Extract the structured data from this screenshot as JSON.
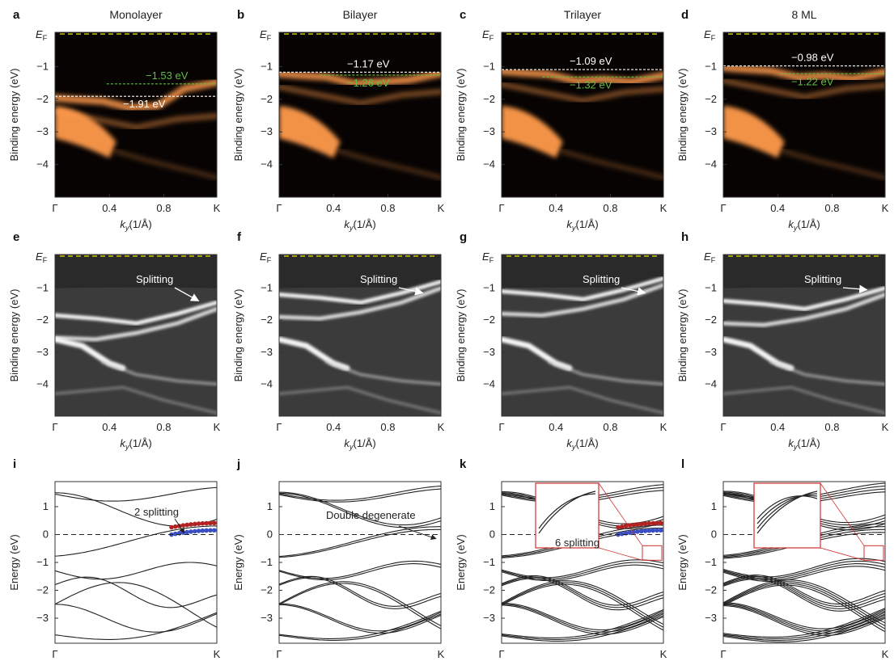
{
  "colors": {
    "arpes_hot": "#ff9a4c",
    "green_ref": "#5fbf3f",
    "yellow_ef": "#d8d800",
    "red_band": "#b22222",
    "blue_band": "#3a4fc4"
  },
  "chart_data": [
    {
      "id": "a",
      "type": "heatmap",
      "title": "Monolayer",
      "style": "arpes",
      "xlabel": "k_y(1/Å)",
      "ylabel": "Binding energy (eV)",
      "xticks": [
        "Γ",
        "0.4",
        "0.8",
        "K"
      ],
      "xtick_values": [
        0,
        0.4,
        0.8,
        1.19
      ],
      "yticks": [
        "−1",
        "−2",
        "−3",
        "−4"
      ],
      "ytick_values": [
        -1,
        -2,
        -3,
        -4
      ],
      "ylim": [
        -5,
        0.05
      ],
      "ef_label": "E_F",
      "refs": [
        {
          "label": "−1.53 eV",
          "value": -1.53,
          "color": "green",
          "x_start": 0.38
        },
        {
          "label": "−1.91 eV",
          "value": -1.91,
          "color": "white",
          "x_start": 0
        }
      ]
    },
    {
      "id": "b",
      "type": "heatmap",
      "title": "Bilayer",
      "style": "arpes",
      "xlabel": "k_y(1/Å)",
      "ylabel": "Binding energy (eV)",
      "xticks": [
        "Γ",
        "0.4",
        "0.8",
        "K"
      ],
      "xtick_values": [
        0,
        0.4,
        0.8,
        1.19
      ],
      "yticks": [
        "−1",
        "−2",
        "−3",
        "−4"
      ],
      "ytick_values": [
        -1,
        -2,
        -3,
        -4
      ],
      "ylim": [
        -5,
        0.05
      ],
      "ef_label": "E_F",
      "refs": [
        {
          "label": "−1.17 eV",
          "value": -1.17,
          "color": "white",
          "x_start": 0
        },
        {
          "label": "−1.26 eV",
          "value": -1.26,
          "color": "green",
          "x_start": 0.3
        }
      ]
    },
    {
      "id": "c",
      "type": "heatmap",
      "title": "Trilayer",
      "style": "arpes",
      "xlabel": "k_y(1/Å)",
      "ylabel": "Binding energy (eV)",
      "xticks": [
        "Γ",
        "0.4",
        "0.8",
        "K"
      ],
      "xtick_values": [
        0,
        0.4,
        0.8,
        1.19
      ],
      "yticks": [
        "−1",
        "−2",
        "−3",
        "−4"
      ],
      "ytick_values": [
        -1,
        -2,
        -3,
        -4
      ],
      "ylim": [
        -5,
        0.05
      ],
      "ef_label": "E_F",
      "refs": [
        {
          "label": "−1.09 eV",
          "value": -1.09,
          "color": "white",
          "x_start": 0
        },
        {
          "label": "−1.32 eV",
          "value": -1.32,
          "color": "green",
          "x_start": 0.3
        }
      ]
    },
    {
      "id": "d",
      "type": "heatmap",
      "title": "8 ML",
      "style": "arpes",
      "xlabel": "k_y(1/Å)",
      "ylabel": "Binding energy (eV)",
      "xticks": [
        "Γ",
        "0.4",
        "0.8",
        "K"
      ],
      "xtick_values": [
        0,
        0.4,
        0.8,
        1.19
      ],
      "yticks": [
        "−1",
        "−2",
        "−3",
        "−4"
      ],
      "ytick_values": [
        -1,
        -2,
        -3,
        -4
      ],
      "ylim": [
        -5,
        0.05
      ],
      "ef_label": "E_F",
      "refs": [
        {
          "label": "−0.98 eV",
          "value": -0.98,
          "color": "white",
          "x_start": 0
        },
        {
          "label": "−1.22 eV",
          "value": -1.22,
          "color": "green",
          "x_start": 0.42
        }
      ]
    },
    {
      "id": "e",
      "type": "heatmap",
      "title": "",
      "style": "curvature",
      "xlabel": "k_y(1/Å)",
      "ylabel": "Binding energy (eV)",
      "xticks": [
        "Γ",
        "0.4",
        "0.8",
        "K"
      ],
      "xtick_values": [
        0,
        0.4,
        0.8,
        1.19
      ],
      "yticks": [
        "−1",
        "−2",
        "−3",
        "−4"
      ],
      "ytick_values": [
        -1,
        -2,
        -3,
        -4
      ],
      "ylim": [
        -5,
        0.05
      ],
      "ef_label": "E_F",
      "annotation": "Splitting"
    },
    {
      "id": "f",
      "type": "heatmap",
      "title": "",
      "style": "curvature",
      "xlabel": "k_y(1/Å)",
      "ylabel": "Binding energy (eV)",
      "xticks": [
        "Γ",
        "0.4",
        "0.8",
        "K"
      ],
      "xtick_values": [
        0,
        0.4,
        0.8,
        1.19
      ],
      "yticks": [
        "−1",
        "−2",
        "−3",
        "−4"
      ],
      "ytick_values": [
        -1,
        -2,
        -3,
        -4
      ],
      "ylim": [
        -5,
        0.05
      ],
      "ef_label": "E_F",
      "annotation": "Splitting"
    },
    {
      "id": "g",
      "type": "heatmap",
      "title": "",
      "style": "curvature",
      "xlabel": "k_y(1/Å)",
      "ylabel": "Binding energy (eV)",
      "xticks": [
        "Γ",
        "0.4",
        "0.8",
        "K"
      ],
      "xtick_values": [
        0,
        0.4,
        0.8,
        1.19
      ],
      "yticks": [
        "−1",
        "−2",
        "−3",
        "−4"
      ],
      "ytick_values": [
        -1,
        -2,
        -3,
        -4
      ],
      "ylim": [
        -5,
        0.05
      ],
      "ef_label": "E_F",
      "annotation": "Splitting"
    },
    {
      "id": "h",
      "type": "heatmap",
      "title": "",
      "style": "curvature",
      "xlabel": "k_y(1/Å)",
      "ylabel": "Binding energy (eV)",
      "xticks": [
        "Γ",
        "0.4",
        "0.8",
        "K"
      ],
      "xtick_values": [
        0,
        0.4,
        0.8,
        1.19
      ],
      "yticks": [
        "−1",
        "−2",
        "−3",
        "−4"
      ],
      "ytick_values": [
        -1,
        -2,
        -3,
        -4
      ],
      "ylim": [
        -5,
        0.05
      ],
      "ef_label": "E_F",
      "annotation": "Splitting"
    },
    {
      "id": "i",
      "type": "line",
      "title": "",
      "xlabel": "",
      "ylabel": "Energy (eV)",
      "xticks": [
        "Γ",
        "K"
      ],
      "xtick_values": [
        0,
        1
      ],
      "yticks": [
        "1",
        "0",
        "−1",
        "−2",
        "−3"
      ],
      "ytick_values": [
        1,
        0,
        -1,
        -2,
        -3
      ],
      "ylim": [
        -3.9,
        1.9
      ],
      "annotation": "2 splitting",
      "layers": 1
    },
    {
      "id": "j",
      "type": "line",
      "title": "",
      "xlabel": "",
      "ylabel": "Energy (eV)",
      "xticks": [
        "Γ",
        "K"
      ],
      "xtick_values": [
        0,
        1
      ],
      "yticks": [
        "1",
        "0",
        "−1",
        "−2",
        "−3"
      ],
      "ytick_values": [
        1,
        0,
        -1,
        -2,
        -3
      ],
      "ylim": [
        -3.9,
        1.9
      ],
      "annotation": "Double degenerate",
      "layers": 2
    },
    {
      "id": "k",
      "type": "line",
      "title": "",
      "xlabel": "",
      "ylabel": "Energy (eV)",
      "xticks": [
        "Γ",
        "K"
      ],
      "xtick_values": [
        0,
        1
      ],
      "yticks": [
        "1",
        "0",
        "−1",
        "−2",
        "−3"
      ],
      "ytick_values": [
        1,
        0,
        -1,
        -2,
        -3
      ],
      "ylim": [
        -3.9,
        1.9
      ],
      "annotation": "6 splitting",
      "layers": 3
    },
    {
      "id": "l",
      "type": "line",
      "title": "",
      "xlabel": "",
      "ylabel": "Energy (eV)",
      "xticks": [
        "Γ",
        "K"
      ],
      "xtick_values": [
        0,
        1
      ],
      "yticks": [
        "1",
        "0",
        "−1",
        "−2",
        "−3"
      ],
      "ytick_values": [
        1,
        0,
        -1,
        -2,
        -3
      ],
      "ylim": [
        -3.9,
        1.9
      ],
      "layers": 8
    }
  ]
}
